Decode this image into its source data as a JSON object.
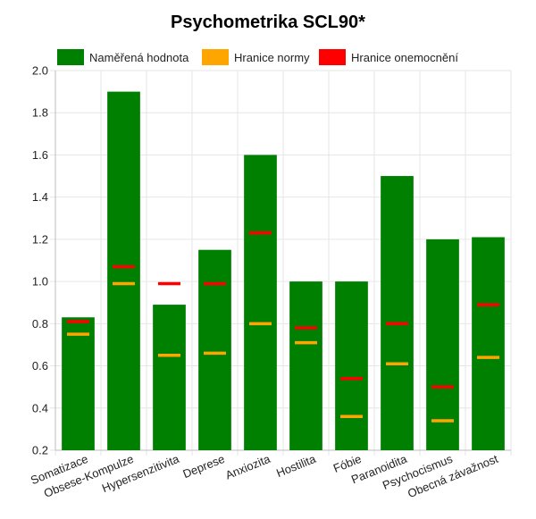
{
  "chart_data": {
    "type": "bar",
    "title": "Psychometrika SCL90*",
    "categories": [
      "Somatizace",
      "Obsese-Kompulze",
      "Hypersenzitivita",
      "Deprese",
      "Anxiozita",
      "Hostilita",
      "Fóbie",
      "Paranoidita",
      "Psychocismus",
      "Obecná závažnost"
    ],
    "series": [
      {
        "name": "Naměřená hodnota",
        "kind": "bar",
        "color": "#008000",
        "values": [
          0.83,
          1.9,
          0.89,
          1.15,
          1.6,
          1.0,
          1.0,
          1.5,
          1.2,
          1.21
        ]
      },
      {
        "name": "Hranice normy",
        "kind": "marker",
        "color": "#FFA500",
        "values": [
          0.75,
          0.99,
          0.65,
          0.66,
          0.8,
          0.71,
          0.36,
          0.61,
          0.34,
          0.64
        ]
      },
      {
        "name": "Hranice onemocnění",
        "kind": "marker",
        "color": "#FF0000",
        "values": [
          0.81,
          1.07,
          0.99,
          0.99,
          1.23,
          0.78,
          0.54,
          0.8,
          0.5,
          0.89
        ]
      }
    ],
    "ylim": [
      0.2,
      2.0
    ],
    "yticks": [
      "0.2",
      "0.4",
      "0.6",
      "0.8",
      "1.0",
      "1.2",
      "1.4",
      "1.6",
      "1.8",
      "2.0"
    ],
    "xlabel": "",
    "ylabel": "",
    "grid": true,
    "legend_position": "top"
  }
}
